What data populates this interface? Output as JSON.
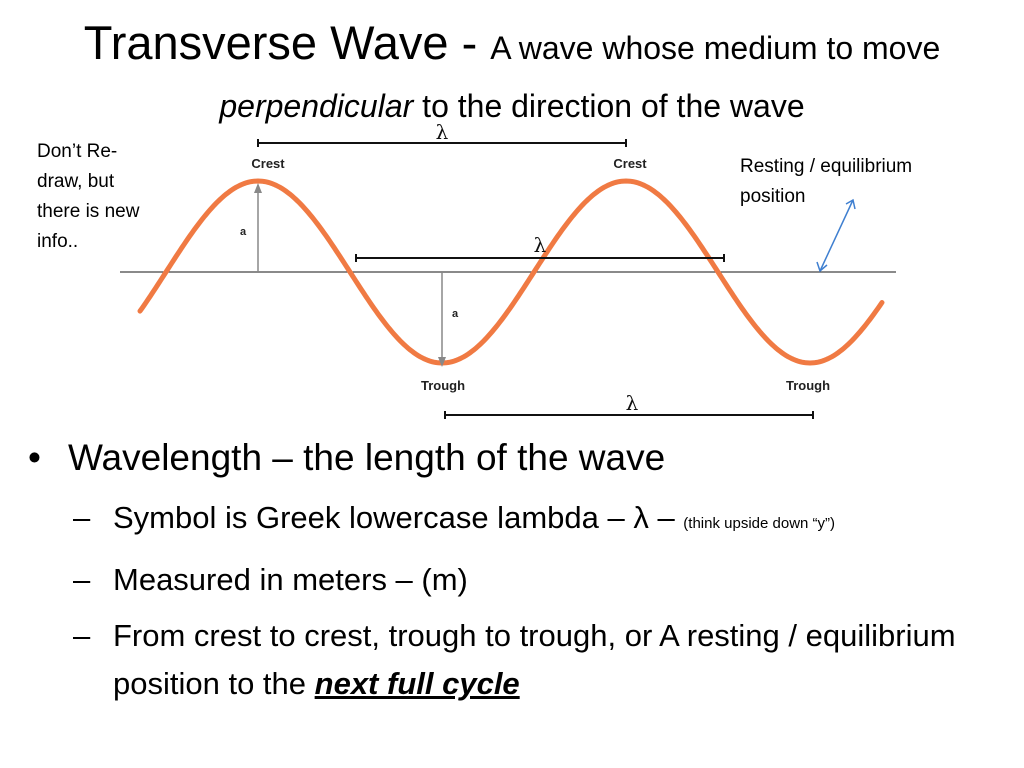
{
  "title": {
    "main": "Transverse Wave - ",
    "rest_1": "A wave whose medium to move ",
    "emphasis": "perpendicular",
    "rest_2": " to the direction of the wave"
  },
  "side_note": "Don’t Re-draw, but there is new info..",
  "resting_label": "Resting / equilibrium position",
  "diagram": {
    "crest_left": "Crest",
    "crest_right": "Crest",
    "trough_left": "Trough",
    "trough_right": "Trough",
    "amp_top": "a",
    "amp_bottom": "a",
    "lambda_top": "λ",
    "lambda_mid": "λ",
    "lambda_bottom": "λ",
    "colors": {
      "wave": "#f07a43",
      "arrow_blue": "#3f7fd0"
    }
  },
  "bullets": {
    "main": "Wavelength – the length of the wave",
    "sub1_text": "Symbol is Greek lowercase lambda – λ – ",
    "sub1_small": "(think upside down “y”)",
    "sub2": "Measured in meters – (m)",
    "sub3_text": "From crest to crest, trough to trough, or A resting / equilibrium position to the ",
    "sub3_emph": "next full cycle",
    "bullet_char": "•",
    "dash_char": "–"
  }
}
